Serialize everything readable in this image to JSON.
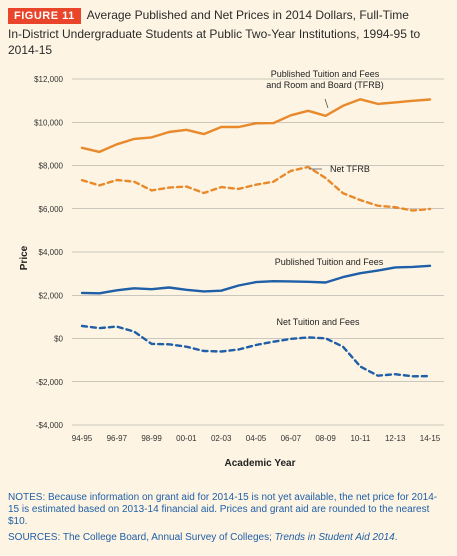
{
  "figure": {
    "badge": "FIGURE 11",
    "title_line1": "Average Published and Net Prices in 2014 Dollars, Full-Time",
    "title_line2": "In-District Undergraduate Students at Public Two-Year Institutions, 1994-95 to 2014-15"
  },
  "colors": {
    "orange": "#e8892b",
    "blue": "#1f5fa8",
    "gridline": "#9a9a9a",
    "badge": "#e8452a",
    "background": "#fdf4e3"
  },
  "chart_data": {
    "type": "line",
    "xlabel": "Academic Year",
    "ylabel": "Price",
    "ylim": [
      -4000,
      12000
    ],
    "yticks": [
      -4000,
      -2000,
      0,
      2000,
      4000,
      6000,
      8000,
      10000,
      12000
    ],
    "ytick_labels": [
      "-$4,000",
      "-$2,000",
      "$0",
      "$2,000",
      "$4,000",
      "$6,000",
      "$8,000",
      "$10,000",
      "$12,000"
    ],
    "grid": "horizontal",
    "x": [
      "94-95",
      "95-96",
      "96-97",
      "97-98",
      "98-99",
      "99-00",
      "00-01",
      "01-02",
      "02-03",
      "03-04",
      "04-05",
      "05-06",
      "06-07",
      "07-08",
      "08-09",
      "09-10",
      "10-11",
      "11-12",
      "12-13",
      "13-14",
      "14-15"
    ],
    "xtick_labels": [
      "94-95",
      "96-97",
      "98-99",
      "00-01",
      "02-03",
      "04-05",
      "06-07",
      "08-09",
      "10-11",
      "12-13",
      "14-15"
    ],
    "series": [
      {
        "name": "Published Tuition and Fees and Room and Board (TFRB)",
        "label_lines": [
          "Published Tuition and Fees",
          "and Room and Board (TFRB)"
        ],
        "style": "solid",
        "color": "orange",
        "values": [
          8820,
          8630,
          8980,
          9230,
          9300,
          9550,
          9650,
          9450,
          9780,
          9780,
          9950,
          9960,
          10320,
          10530,
          10300,
          10760,
          11060,
          10850,
          10920,
          10990,
          11050
        ]
      },
      {
        "name": "Net TFRB",
        "label_lines": [
          "Net TFRB"
        ],
        "style": "dashed",
        "color": "orange",
        "values": [
          7320,
          7080,
          7330,
          7250,
          6850,
          6980,
          7030,
          6730,
          7000,
          6920,
          7110,
          7250,
          7750,
          7930,
          7420,
          6720,
          6400,
          6140,
          6070,
          5920,
          5990
        ]
      },
      {
        "name": "Published Tuition and Fees",
        "label_lines": [
          "Published Tuition and Fees"
        ],
        "style": "solid",
        "color": "blue",
        "values": [
          2110,
          2090,
          2230,
          2320,
          2280,
          2360,
          2250,
          2180,
          2210,
          2450,
          2610,
          2650,
          2640,
          2620,
          2590,
          2840,
          3020,
          3140,
          3290,
          3310,
          3360
        ]
      },
      {
        "name": "Net Tuition and Fees",
        "label_lines": [
          "Net Tuition and Fees"
        ],
        "style": "dashed",
        "color": "blue",
        "values": [
          580,
          480,
          550,
          320,
          -250,
          -270,
          -380,
          -580,
          -600,
          -510,
          -300,
          -150,
          -20,
          50,
          10,
          -380,
          -1300,
          -1720,
          -1650,
          -1750,
          -1740
        ]
      }
    ]
  },
  "notes": "NOTES: Because information on grant aid for 2014-15 is not yet available, the net price for 2014-15 is estimated based on 2013-14 financial aid. Prices and grant aid are rounded to the nearest $10.",
  "sources": {
    "prefix": "SOURCES: The College Board, Annual Survey of Colleges; ",
    "italic": "Trends in Student Aid 2014",
    "suffix": "."
  }
}
